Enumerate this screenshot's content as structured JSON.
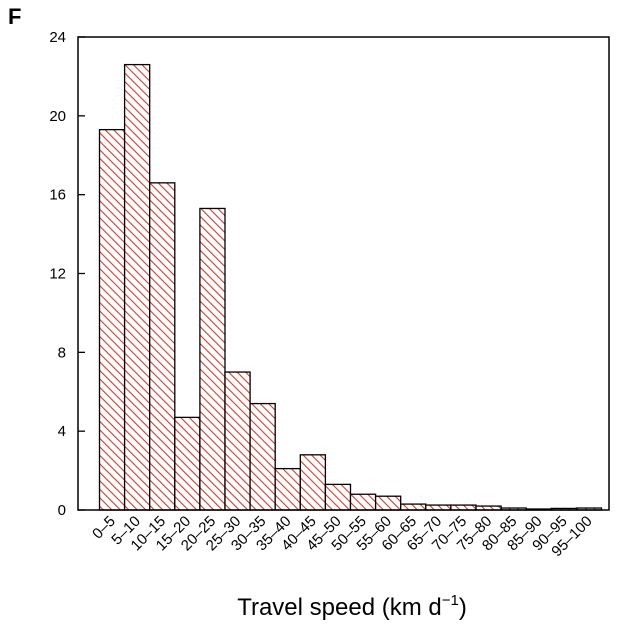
{
  "chart_data": {
    "type": "bar",
    "panel_label": "F",
    "title": "",
    "xlabel": "Travel speed (km d",
    "xlabel_superscript": "−1",
    "xlabel_suffix": ")",
    "ylabel": "",
    "ylim": [
      0,
      24
    ],
    "yticks": [
      0,
      4,
      8,
      12,
      16,
      20,
      24
    ],
    "categories": [
      "0–5",
      "5–10",
      "10–15",
      "15–20",
      "20–25",
      "25–30",
      "30–35",
      "35–40",
      "40–45",
      "45–50",
      "50–55",
      "55–60",
      "60–65",
      "65–70",
      "70–75",
      "75–80",
      "80–85",
      "85–90",
      "90–95",
      "95–100"
    ],
    "values": [
      19.3,
      22.6,
      16.6,
      4.7,
      15.3,
      7.0,
      5.4,
      2.1,
      2.8,
      1.3,
      0.8,
      0.7,
      0.3,
      0.25,
      0.25,
      0.2,
      0.1,
      0.05,
      0.08,
      0.1
    ],
    "bar_fill": "hatched",
    "hatch_color": "#d33a2c",
    "bar_edge_color": "#000000",
    "grid": false,
    "legend": "none"
  }
}
